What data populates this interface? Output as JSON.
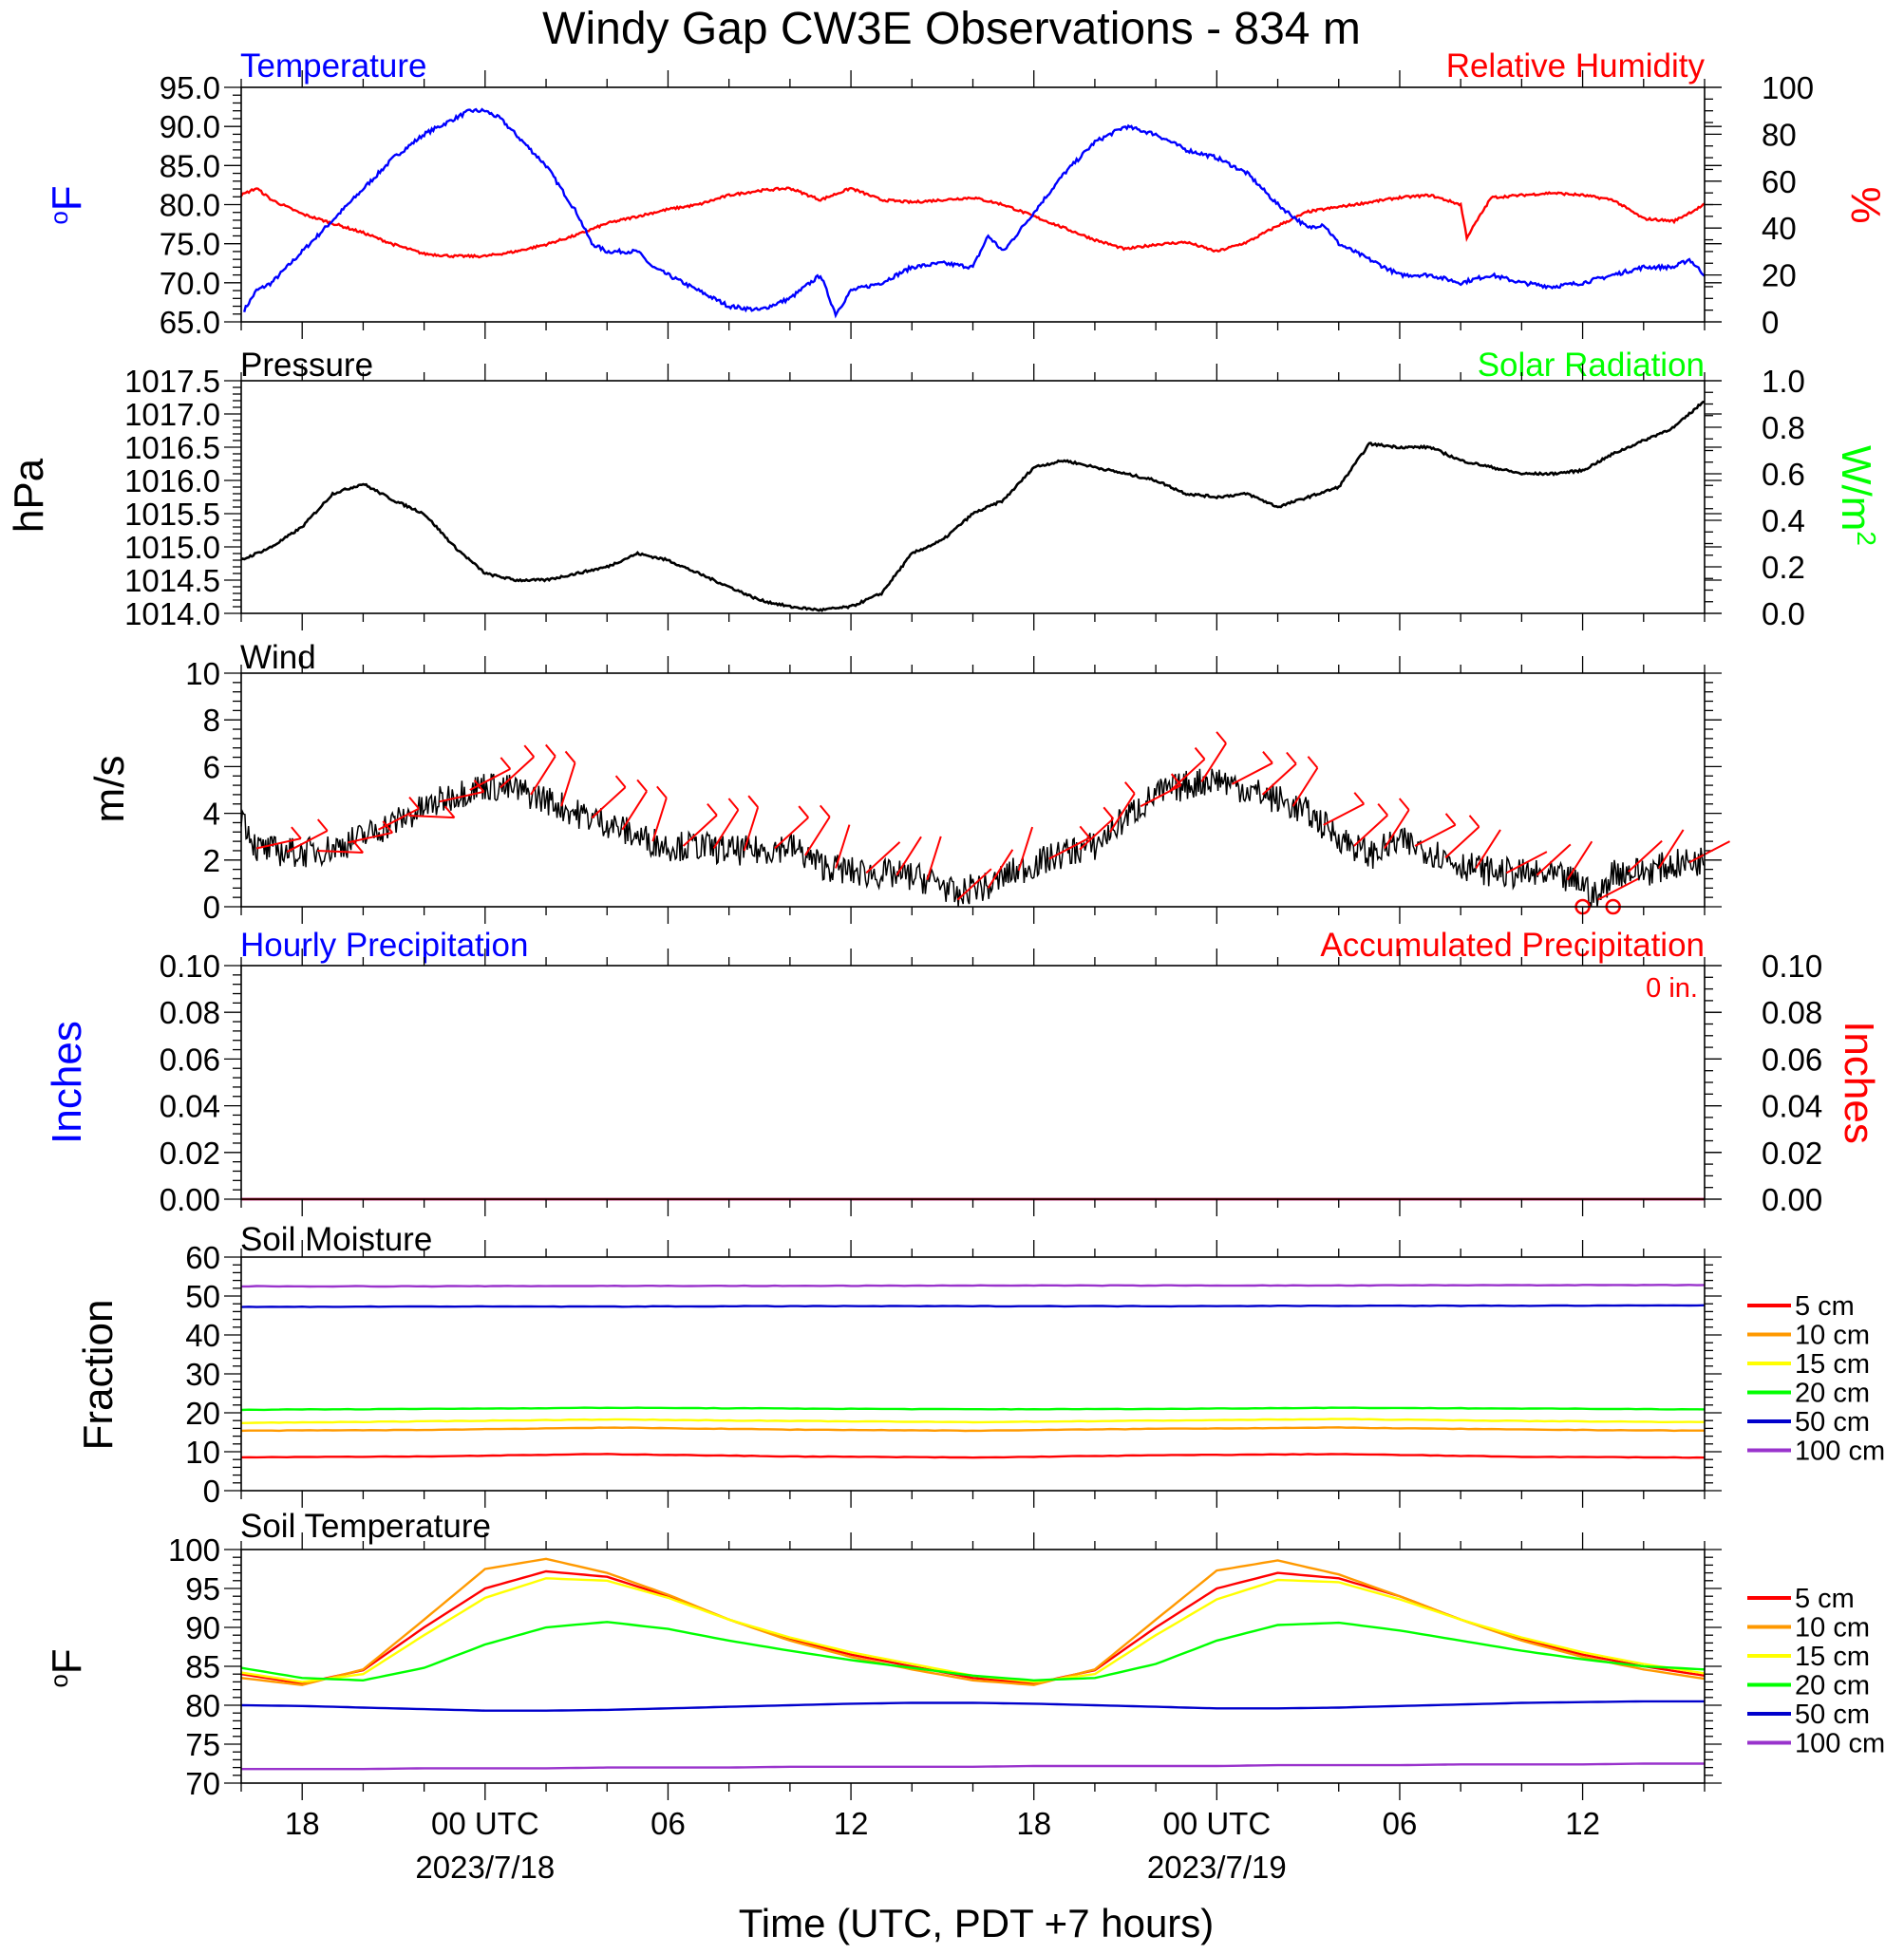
{
  "title": "Windy Gap CW3E Observations - 834 m",
  "x_axis": {
    "label": "Time (UTC, PDT +7 hours)",
    "range_hours": [
      -8,
      40
    ],
    "ticks": [
      {
        "hour": -6,
        "label": "18",
        "date": ""
      },
      {
        "hour": 0,
        "label": "00 UTC",
        "date": "2023/7/18"
      },
      {
        "hour": 6,
        "label": "06",
        "date": ""
      },
      {
        "hour": 12,
        "label": "12",
        "date": ""
      },
      {
        "hour": 18,
        "label": "18",
        "date": ""
      },
      {
        "hour": 24,
        "label": "00 UTC",
        "date": "2023/7/19"
      },
      {
        "hour": 30,
        "label": "06",
        "date": ""
      },
      {
        "hour": 36,
        "label": "12",
        "date": ""
      }
    ]
  },
  "colors": {
    "blue": "#0000ff",
    "red": "#ff0000",
    "green": "#00ff00",
    "black": "#000000",
    "orange": "#ff9900",
    "yellow": "#ffff00",
    "navy": "#0000cc",
    "purple": "#9933cc"
  },
  "panels": {
    "temp_rh": {
      "left_title": "Temperature",
      "right_title": "Relative Humidity",
      "left_unit": "oF",
      "right_unit": "%",
      "left_ticks": [
        "65.0",
        "70.0",
        "75.0",
        "80.0",
        "85.0",
        "90.0",
        "95.0"
      ],
      "right_ticks": [
        "0",
        "20",
        "40",
        "60",
        "80",
        "100"
      ]
    },
    "pressure": {
      "left_title": "Pressure",
      "right_title": "Solar Radiation",
      "left_unit": "hPa",
      "right_unit": "W/m2",
      "left_ticks": [
        "1014.0",
        "1014.5",
        "1015.0",
        "1015.5",
        "1016.0",
        "1016.5",
        "1017.0",
        "1017.5"
      ],
      "right_ticks": [
        "0.0",
        "0.2",
        "0.4",
        "0.6",
        "0.8",
        "1.0"
      ]
    },
    "wind": {
      "left_title": "Wind",
      "left_unit": "m/s",
      "left_ticks": [
        "0",
        "2",
        "4",
        "6",
        "8",
        "10"
      ]
    },
    "precip": {
      "left_title": "Hourly Precipitation",
      "right_title": "Accumulated Precipitation",
      "left_unit": "Inches",
      "right_unit": "Inches",
      "accum_note": "0 in.",
      "left_ticks": [
        "0.00",
        "0.02",
        "0.04",
        "0.06",
        "0.08",
        "0.10"
      ],
      "right_ticks": [
        "0.00",
        "0.02",
        "0.04",
        "0.06",
        "0.08",
        "0.10"
      ]
    },
    "soil_moisture": {
      "left_title": "Soil Moisture",
      "left_unit": "Fraction",
      "left_ticks": [
        "0",
        "10",
        "20",
        "30",
        "40",
        "50",
        "60"
      ],
      "legend": [
        "5 cm",
        "10 cm",
        "15 cm",
        "20 cm",
        "50 cm",
        "100 cm"
      ]
    },
    "soil_temp": {
      "left_title": "Soil Temperature",
      "left_unit": "oF",
      "left_ticks": [
        "70",
        "75",
        "80",
        "85",
        "90",
        "95",
        "100"
      ],
      "legend": [
        "5 cm",
        "10 cm",
        "15 cm",
        "20 cm",
        "50 cm",
        "100 cm"
      ]
    }
  },
  "chart_data": [
    {
      "type": "line",
      "title": "Temperature",
      "ylabel": "oF",
      "ylim": [
        65,
        95
      ],
      "x_units": "hours since 2023-07-18 00 UTC",
      "series": [
        {
          "name": "Temperature",
          "color": "#0000ff",
          "x": [
            -7.9,
            -7.5,
            -7.0,
            -6.0,
            -5.0,
            -4.0,
            -3.0,
            -2.0,
            -1.0,
            -0.5,
            0.0,
            0.5,
            1.0,
            2.0,
            3.0,
            3.5,
            4.0,
            5.0,
            5.5,
            6.0,
            7.0,
            8.0,
            9.0,
            10.0,
            11.0,
            11.5,
            12.0,
            13.0,
            14.0,
            15.0,
            16.0,
            16.5,
            17.0,
            18.0,
            19.0,
            20.0,
            21.0,
            22.0,
            23.0,
            24.0,
            25.0,
            26.0,
            27.0,
            27.5,
            28.0,
            29.0,
            30.0,
            31.0,
            32.0,
            33.0,
            34.0,
            35.0,
            36.0,
            37.0,
            38.0,
            39.0,
            39.5,
            40.0
          ],
          "values": [
            66.5,
            69,
            70,
            74,
            78,
            82,
            86,
            89,
            91,
            92,
            92,
            91,
            89,
            85,
            79,
            75,
            74,
            74,
            72,
            71,
            69,
            67,
            66.5,
            68,
            71,
            66,
            69,
            70,
            72,
            72.5,
            72,
            76,
            74,
            79,
            84,
            88,
            90,
            89,
            87,
            86,
            84,
            80,
            77,
            77.5,
            75,
            73,
            71,
            71,
            70,
            71,
            70,
            69.5,
            70,
            71,
            72,
            72,
            73,
            71
          ]
        }
      ]
    },
    {
      "type": "line",
      "title": "Relative Humidity",
      "ylabel": "%",
      "ylim": [
        0,
        100
      ],
      "series": [
        {
          "name": "Relative Humidity",
          "color": "#ff0000",
          "x": [
            -8.0,
            -7.5,
            -7.0,
            -6.0,
            -5.0,
            -4.0,
            -3.0,
            -2.0,
            -1.0,
            0.0,
            1.0,
            2.0,
            3.0,
            4.0,
            5.0,
            6.0,
            7.0,
            8.0,
            9.0,
            10.0,
            11.0,
            12.0,
            13.0,
            14.0,
            15.0,
            16.0,
            17.0,
            18.0,
            19.0,
            20.0,
            21.0,
            22.0,
            23.0,
            24.0,
            25.0,
            26.0,
            27.0,
            28.0,
            29.0,
            30.0,
            31.0,
            32.0,
            32.2,
            33.0,
            34.0,
            35.0,
            36.0,
            37.0,
            38.0,
            39.0,
            40.0
          ],
          "values": [
            54,
            57,
            52,
            46,
            42,
            38,
            33,
            29,
            28,
            28,
            30,
            33,
            37,
            42,
            45,
            48,
            50,
            54,
            56,
            57,
            52,
            57,
            52,
            51,
            52,
            53,
            50,
            45,
            40,
            35,
            31,
            33,
            34,
            30,
            34,
            41,
            47,
            49,
            51,
            53,
            54,
            50,
            36,
            53,
            54,
            55,
            54,
            52,
            44,
            43,
            50
          ]
        }
      ]
    },
    {
      "type": "line",
      "title": "Pressure",
      "ylabel": "hPa",
      "ylim": [
        1014.0,
        1017.5
      ],
      "series": [
        {
          "name": "Pressure",
          "color": "#000000",
          "x": [
            -8.0,
            -7.0,
            -6.0,
            -5.0,
            -4.0,
            -3.0,
            -2.0,
            -1.0,
            0.0,
            1.0,
            2.0,
            3.0,
            4.0,
            5.0,
            6.0,
            7.0,
            8.0,
            9.0,
            10.0,
            11.0,
            12.0,
            13.0,
            14.0,
            15.0,
            16.0,
            17.0,
            18.0,
            19.0,
            20.0,
            21.0,
            22.0,
            23.0,
            24.0,
            25.0,
            26.0,
            27.0,
            28.0,
            29.0,
            30.0,
            31.0,
            32.0,
            33.0,
            34.0,
            35.0,
            36.0,
            37.0,
            38.0,
            39.0,
            40.0
          ],
          "values": [
            1014.8,
            1015.0,
            1015.3,
            1015.8,
            1015.95,
            1015.7,
            1015.5,
            1015.0,
            1014.6,
            1014.5,
            1014.5,
            1014.6,
            1014.7,
            1014.9,
            1014.8,
            1014.6,
            1014.4,
            1014.2,
            1014.1,
            1014.05,
            1014.1,
            1014.3,
            1014.9,
            1015.1,
            1015.5,
            1015.7,
            1016.2,
            1016.3,
            1016.2,
            1016.1,
            1016.0,
            1015.8,
            1015.75,
            1015.8,
            1015.6,
            1015.75,
            1015.9,
            1016.55,
            1016.5,
            1016.5,
            1016.3,
            1016.2,
            1016.1,
            1016.1,
            1016.15,
            1016.4,
            1016.6,
            1016.8,
            1017.2
          ]
        }
      ]
    },
    {
      "type": "line",
      "title": "Wind",
      "ylabel": "m/s",
      "ylim": [
        0,
        10
      ],
      "series": [
        {
          "name": "Wind",
          "color": "#000000",
          "x": [
            -8.0,
            -7.5,
            -7.0,
            -6.0,
            -5.0,
            -4.0,
            -3.0,
            -2.0,
            -1.0,
            0.0,
            1.0,
            2.0,
            3.0,
            4.0,
            5.0,
            6.0,
            7.0,
            8.0,
            9.0,
            10.0,
            11.0,
            12.0,
            13.0,
            14.0,
            15.0,
            15.5,
            16.0,
            16.5,
            17.0,
            18.0,
            19.0,
            20.0,
            21.0,
            22.0,
            23.0,
            24.0,
            25.0,
            26.0,
            27.0,
            28.0,
            29.0,
            30.0,
            31.0,
            32.0,
            33.0,
            34.0,
            35.0,
            36.0,
            36.5,
            37.0,
            38.0,
            39.0,
            40.0
          ],
          "values": [
            4.0,
            2.5,
            2.4,
            2.3,
            2.5,
            3.0,
            3.6,
            4.2,
            4.8,
            5.2,
            5.0,
            4.6,
            4.0,
            3.6,
            3.0,
            2.6,
            2.6,
            2.4,
            2.4,
            2.6,
            1.8,
            1.5,
            1.4,
            1.3,
            1.0,
            0.3,
            0.9,
            0.8,
            1.3,
            1.8,
            2.3,
            2.6,
            3.8,
            4.8,
            5.2,
            5.5,
            5.0,
            4.6,
            4.0,
            3.0,
            2.2,
            2.8,
            2.4,
            1.8,
            1.5,
            1.4,
            1.3,
            1.0,
            0.3,
            1.5,
            1.5,
            1.8,
            2.0
          ]
        }
      ]
    },
    {
      "type": "line",
      "title": "Hourly Precipitation",
      "ylabel": "Inches",
      "ylim": [
        0,
        0.1
      ],
      "series": [
        {
          "name": "Hourly Precipitation",
          "color": "#0000ff",
          "x": [
            -8,
            40
          ],
          "values": [
            0,
            0
          ]
        },
        {
          "name": "Accumulated Precipitation",
          "color": "#ff0000",
          "x": [
            -8,
            40
          ],
          "values": [
            0,
            0
          ]
        }
      ]
    },
    {
      "type": "line",
      "title": "Soil Moisture",
      "ylabel": "Fraction",
      "ylim": [
        0,
        60
      ],
      "x": [
        -8,
        -2,
        4,
        10,
        16,
        22,
        28,
        34,
        40
      ],
      "series": [
        {
          "name": "5 cm",
          "color": "#ff0000",
          "values": [
            8.6,
            8.8,
            9.4,
            8.8,
            8.5,
            9.1,
            9.4,
            8.7,
            8.5
          ]
        },
        {
          "name": "10 cm",
          "color": "#ff9900",
          "values": [
            15.4,
            15.6,
            16.2,
            15.7,
            15.4,
            15.9,
            16.2,
            15.7,
            15.4
          ]
        },
        {
          "name": "15 cm",
          "color": "#ffff00",
          "values": [
            17.4,
            17.8,
            18.3,
            17.9,
            17.6,
            18.0,
            18.4,
            17.9,
            17.6
          ]
        },
        {
          "name": "20 cm",
          "color": "#00ff00",
          "values": [
            20.8,
            21.0,
            21.3,
            21.1,
            20.9,
            21.0,
            21.3,
            21.1,
            20.9
          ]
        },
        {
          "name": "50 cm",
          "color": "#0000cc",
          "values": [
            47.2,
            47.3,
            47.3,
            47.4,
            47.4,
            47.4,
            47.5,
            47.5,
            47.6
          ]
        },
        {
          "name": "100 cm",
          "color": "#9933cc",
          "values": [
            52.5,
            52.5,
            52.6,
            52.6,
            52.7,
            52.7,
            52.7,
            52.8,
            52.8
          ]
        }
      ]
    },
    {
      "type": "line",
      "title": "Soil Temperature",
      "ylabel": "oF",
      "ylim": [
        70,
        100
      ],
      "x": [
        -8,
        -6,
        -4,
        -2,
        0,
        2,
        4,
        6,
        8,
        10,
        12,
        14,
        16,
        18,
        20,
        22,
        24,
        26,
        28,
        30,
        32,
        34,
        36,
        38,
        40
      ],
      "series": [
        {
          "name": "5 cm",
          "color": "#ff0000",
          "values": [
            84.0,
            82.8,
            84.5,
            90.0,
            95.0,
            97.2,
            96.5,
            94.0,
            91.0,
            88.5,
            86.5,
            85.0,
            83.5,
            82.8,
            84.5,
            90.0,
            95.0,
            97.0,
            96.3,
            94.0,
            91.0,
            88.5,
            86.5,
            85.0,
            83.8
          ]
        },
        {
          "name": "10 cm",
          "color": "#ff9900",
          "values": [
            83.5,
            82.6,
            84.6,
            91.0,
            97.5,
            98.8,
            97.0,
            94.2,
            91.0,
            88.3,
            86.2,
            84.6,
            83.2,
            82.6,
            84.6,
            91.0,
            97.3,
            98.6,
            96.8,
            94.0,
            91.0,
            88.3,
            86.2,
            84.6,
            83.4
          ]
        },
        {
          "name": "15 cm",
          "color": "#ffff00",
          "values": [
            84.2,
            83.0,
            84.0,
            89.0,
            93.8,
            96.3,
            96.0,
            93.8,
            91.0,
            88.7,
            86.8,
            85.3,
            83.8,
            83.0,
            84.0,
            89.0,
            93.6,
            96.1,
            95.8,
            93.6,
            91.0,
            88.7,
            86.8,
            85.3,
            84.1
          ]
        },
        {
          "name": "20 cm",
          "color": "#00ff00",
          "values": [
            84.8,
            83.5,
            83.2,
            84.8,
            87.8,
            90.0,
            90.7,
            89.8,
            88.3,
            87.0,
            85.8,
            84.8,
            83.8,
            83.2,
            83.5,
            85.3,
            88.3,
            90.3,
            90.6,
            89.6,
            88.3,
            87.0,
            85.9,
            85.0,
            84.6
          ]
        },
        {
          "name": "50 cm",
          "color": "#0000cc",
          "values": [
            80.0,
            79.9,
            79.7,
            79.5,
            79.3,
            79.3,
            79.4,
            79.6,
            79.8,
            80.0,
            80.2,
            80.3,
            80.3,
            80.2,
            80.0,
            79.8,
            79.6,
            79.6,
            79.7,
            79.9,
            80.1,
            80.3,
            80.4,
            80.5,
            80.5
          ]
        },
        {
          "name": "100 cm",
          "color": "#9933cc",
          "values": [
            71.8,
            71.8,
            71.8,
            71.9,
            71.9,
            71.9,
            72.0,
            72.0,
            72.0,
            72.1,
            72.1,
            72.1,
            72.1,
            72.2,
            72.2,
            72.2,
            72.2,
            72.3,
            72.3,
            72.3,
            72.4,
            72.4,
            72.4,
            72.5,
            72.5
          ]
        }
      ]
    }
  ]
}
